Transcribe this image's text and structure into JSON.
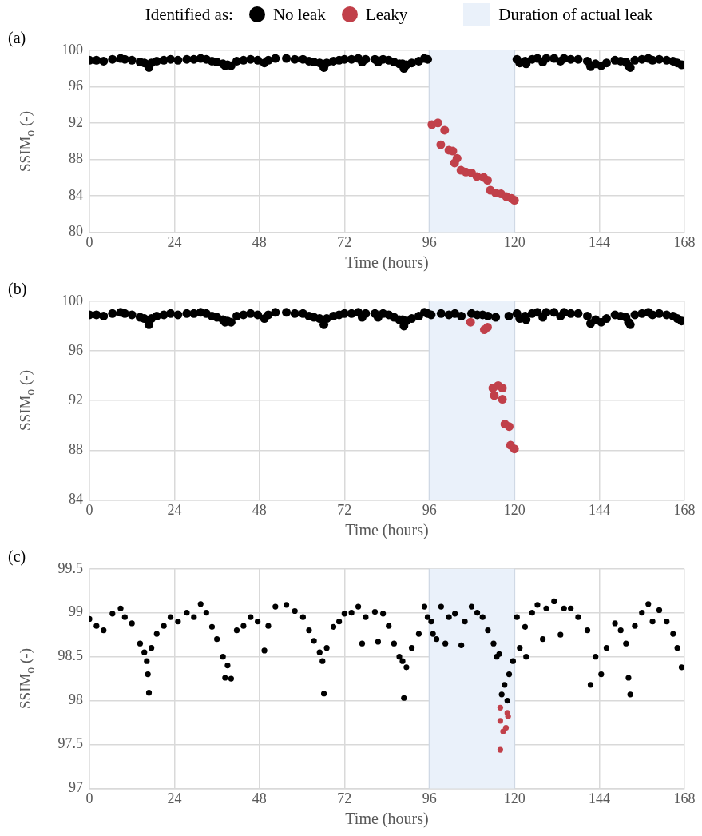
{
  "chart_data": [
    {
      "type": "scatter",
      "title": "(a)",
      "xlabel": "Time (hours)",
      "ylabel": "SSIM$_{o}$ (-)",
      "legend_title": "Identified as:",
      "legend": "top",
      "grid": true,
      "marker": "circle",
      "xlim": [
        0,
        168
      ],
      "xticks": [
        0,
        24,
        48,
        72,
        96,
        120,
        144,
        168
      ],
      "ylim": [
        80,
        100
      ],
      "yticks": [
        80,
        84,
        88,
        92,
        96,
        100
      ],
      "bands": [
        {
          "axis": "x",
          "from": 96,
          "to": 120,
          "label": "Duration of actual leak",
          "color": "#eaf1fa"
        }
      ],
      "series": [
        {
          "name": "No leak",
          "color": "#000000",
          "x": [
            0,
            2,
            4,
            6.5,
            8.8,
            10,
            12,
            14.3,
            15.5,
            16.8,
            17.5,
            19,
            21,
            22.9,
            25,
            27.5,
            29.5,
            31.4,
            33,
            34.6,
            36,
            37.7,
            38.3,
            39,
            40,
            41.6,
            43.5,
            45.5,
            47.5,
            49.4,
            50.5,
            52.5,
            55.6,
            58,
            60.3,
            62,
            63.4,
            65,
            66.2,
            67,
            68.9,
            70.5,
            72,
            74,
            75.9,
            77,
            78,
            80.6,
            81.5,
            82.9,
            84.5,
            86,
            87.5,
            88.4,
            88.8,
            89.5,
            91,
            93,
            94.6,
            95.5,
            120.7,
            121.5,
            123,
            123.3,
            125,
            126.5,
            128,
            129,
            131.2,
            133,
            134,
            135.9,
            138,
            140.6,
            141.5,
            142.9,
            144.5,
            146,
            148.4,
            150,
            151.5,
            152.2,
            152.7,
            154,
            156,
            157.8,
            159,
            160.9,
            163,
            164.8,
            166,
            167.2
          ],
          "values": [
            98.9,
            98.9,
            98.8,
            99.0,
            99.1,
            99.0,
            98.9,
            98.7,
            98.6,
            98.1,
            98.6,
            98.8,
            98.9,
            99.0,
            98.9,
            99.0,
            99.0,
            99.1,
            99.0,
            98.8,
            98.7,
            98.5,
            98.3,
            98.4,
            98.3,
            98.8,
            98.9,
            99.0,
            98.9,
            98.6,
            98.9,
            99.1,
            99.1,
            99.0,
            99.0,
            98.8,
            98.7,
            98.6,
            98.1,
            98.6,
            98.8,
            98.9,
            99.0,
            99.0,
            99.1,
            98.7,
            99.0,
            99.0,
            98.7,
            99.0,
            98.9,
            98.7,
            98.5,
            98.5,
            98.0,
            98.4,
            98.6,
            98.8,
            99.1,
            99.0,
            99.0,
            98.6,
            98.8,
            98.5,
            99.0,
            99.1,
            98.7,
            99.1,
            99.1,
            98.8,
            99.1,
            99.0,
            99.0,
            98.8,
            98.2,
            98.5,
            98.3,
            98.6,
            98.9,
            98.8,
            98.7,
            98.3,
            98.1,
            98.9,
            99.0,
            99.1,
            98.9,
            99.0,
            98.9,
            98.8,
            98.6,
            98.4
          ]
        },
        {
          "name": "Leaky",
          "color": "#c1404a",
          "x": [
            96.7,
            98.4,
            100.3,
            99.2,
            101.5,
            102.6,
            103.8,
            103.1,
            104.9,
            106.3,
            107.9,
            109.4,
            111.3,
            112.4,
            113.2,
            114.7,
            116.2,
            117.7,
            119.2,
            120
          ],
          "values": [
            91.8,
            92.0,
            91.2,
            89.6,
            89.0,
            88.9,
            88.1,
            87.6,
            86.8,
            86.6,
            86.5,
            86.1,
            86.0,
            85.7,
            84.6,
            84.3,
            84.2,
            83.9,
            83.7,
            83.5
          ]
        }
      ]
    },
    {
      "type": "scatter",
      "title": "(b)",
      "xlabel": "Time (hours)",
      "ylabel": "SSIM$_{o}$ (-)",
      "grid": true,
      "marker": "circle",
      "xlim": [
        0,
        168
      ],
      "xticks": [
        0,
        24,
        48,
        72,
        96,
        120,
        144,
        168
      ],
      "ylim": [
        84,
        100
      ],
      "yticks": [
        84,
        88,
        92,
        96,
        100
      ],
      "bands": [
        {
          "axis": "x",
          "from": 96,
          "to": 120,
          "color": "#eaf1fa"
        }
      ],
      "series": [
        {
          "color": "#000000",
          "x": [
            0,
            2,
            4,
            6.5,
            8.8,
            10,
            12,
            14.3,
            15.5,
            16.8,
            17.5,
            19,
            21,
            22.9,
            25,
            27.5,
            29.5,
            31.4,
            33,
            34.6,
            36,
            37.7,
            38.3,
            39,
            40,
            41.6,
            43.5,
            45.5,
            47.5,
            49.4,
            50.5,
            52.5,
            55.6,
            58,
            60.3,
            62,
            63.4,
            65,
            66.2,
            67,
            68.9,
            70.5,
            72,
            74,
            75.9,
            77,
            78,
            80.6,
            81.5,
            82.9,
            84.5,
            86,
            87.5,
            88.4,
            88.8,
            89.5,
            91,
            93,
            94.6,
            95.5,
            96.5,
            99.3,
            101.5,
            103.2,
            105,
            107.9,
            109.5,
            111,
            112.5,
            114.7,
            118.4,
            120.7,
            121.5,
            123,
            123.3,
            125,
            126.5,
            128,
            129,
            131.2,
            133,
            134,
            135.9,
            138,
            140.6,
            141.5,
            142.9,
            144.5,
            146,
            148.4,
            150,
            151.5,
            152.2,
            152.7,
            154,
            156,
            157.8,
            159,
            160.9,
            163,
            164.8,
            166,
            167.2
          ],
          "values": [
            98.9,
            98.9,
            98.8,
            99.0,
            99.1,
            99.0,
            98.9,
            98.7,
            98.6,
            98.1,
            98.6,
            98.8,
            98.9,
            99.0,
            98.9,
            99.0,
            99.0,
            99.1,
            99.0,
            98.8,
            98.7,
            98.5,
            98.3,
            98.4,
            98.3,
            98.8,
            98.9,
            99.0,
            98.9,
            98.6,
            98.9,
            99.1,
            99.1,
            99.0,
            99.0,
            98.8,
            98.7,
            98.6,
            98.1,
            98.6,
            98.8,
            98.9,
            99.0,
            99.0,
            99.1,
            98.7,
            99.0,
            99.0,
            98.7,
            99.0,
            98.9,
            98.7,
            98.5,
            98.5,
            98.0,
            98.4,
            98.6,
            98.8,
            99.1,
            99.0,
            98.9,
            99.0,
            98.9,
            99.0,
            98.8,
            99.0,
            98.9,
            98.9,
            98.8,
            98.7,
            98.8,
            99.0,
            98.6,
            98.8,
            98.5,
            99.0,
            99.1,
            98.7,
            99.1,
            99.1,
            98.8,
            99.1,
            99.0,
            99.0,
            98.8,
            98.2,
            98.5,
            98.3,
            98.6,
            98.9,
            98.8,
            98.7,
            98.3,
            98.1,
            98.9,
            99.0,
            99.1,
            98.9,
            99.0,
            98.9,
            98.8,
            98.6,
            98.4
          ]
        },
        {
          "color": "#c1404a",
          "x": [
            107.6,
            111.5,
            112.4,
            113.9,
            115.4,
            116.6,
            114.3,
            116.6,
            117.3,
            118.5,
            118.9,
            120
          ],
          "values": [
            98.3,
            97.7,
            97.9,
            93.0,
            93.2,
            93.0,
            92.4,
            92.1,
            90.1,
            89.9,
            88.4,
            88.1
          ]
        }
      ]
    },
    {
      "type": "scatter",
      "title": "(c)",
      "xlabel": "Time (hours)",
      "ylabel": "SSIM$_{o}$ (-)",
      "grid": true,
      "marker": "circle",
      "xlim": [
        0,
        168
      ],
      "xticks": [
        0,
        24,
        48,
        72,
        96,
        120,
        144,
        168
      ],
      "ylim": [
        97,
        99.5
      ],
      "yticks": [
        97,
        97.5,
        98,
        98.5,
        99,
        99.5
      ],
      "bands": [
        {
          "axis": "x",
          "from": 96,
          "to": 120,
          "color": "#eaf1fa"
        }
      ],
      "series": [
        {
          "color": "#000000",
          "x": [
            0,
            2,
            4,
            6.5,
            8.8,
            10,
            12,
            14.3,
            15.5,
            16.2,
            16.5,
            16.8,
            17.5,
            19,
            21,
            22.9,
            25,
            27.5,
            29.5,
            31.4,
            33,
            34.6,
            36,
            37.7,
            38.3,
            39,
            40,
            41.6,
            43.5,
            45.5,
            47.5,
            49.4,
            50.5,
            52.5,
            55.6,
            58,
            60.3,
            62,
            63.4,
            65,
            65.8,
            66.2,
            67,
            68.9,
            70.5,
            72,
            74,
            75.9,
            77,
            78,
            80.6,
            81.5,
            82.9,
            84.5,
            86,
            87.5,
            88.4,
            88.8,
            89.5,
            91,
            93,
            94.6,
            95.5,
            96.5,
            97,
            98,
            99.3,
            100.5,
            101.5,
            103.2,
            105,
            106,
            107.9,
            109.5,
            111,
            112.5,
            114.1,
            115,
            115.7,
            116.4,
            117.2,
            118,
            118.5,
            119.6,
            120.7,
            121.5,
            123,
            123.3,
            125,
            126.5,
            128,
            129,
            131.2,
            133,
            134,
            135.9,
            138,
            140.6,
            141.5,
            142.9,
            144.5,
            146,
            148.4,
            150,
            151.5,
            152.2,
            152.7,
            154,
            156,
            157.8,
            159,
            160.9,
            163,
            164.8,
            166,
            167.2
          ],
          "values": [
            98.93,
            98.85,
            98.8,
            98.99,
            99.05,
            98.95,
            98.88,
            98.65,
            98.55,
            98.45,
            98.3,
            98.09,
            98.6,
            98.76,
            98.85,
            98.95,
            98.9,
            99.0,
            98.95,
            99.1,
            99.0,
            98.84,
            98.7,
            98.5,
            98.26,
            98.4,
            98.25,
            98.8,
            98.85,
            98.95,
            98.9,
            98.57,
            98.85,
            99.07,
            99.09,
            99.02,
            98.95,
            98.8,
            98.68,
            98.55,
            98.45,
            98.08,
            98.6,
            98.84,
            98.9,
            98.99,
            99.0,
            99.07,
            98.65,
            98.95,
            99.01,
            98.67,
            98.99,
            98.85,
            98.65,
            98.5,
            98.45,
            98.03,
            98.38,
            98.6,
            98.76,
            99.07,
            98.95,
            98.9,
            98.76,
            98.7,
            99.07,
            98.65,
            98.95,
            98.99,
            98.63,
            98.9,
            99.07,
            99.0,
            98.95,
            98.8,
            98.65,
            98.5,
            98.53,
            98.07,
            98.18,
            98.0,
            98.3,
            98.45,
            98.95,
            98.6,
            98.84,
            98.5,
            99.0,
            99.09,
            98.7,
            99.05,
            99.13,
            98.75,
            99.05,
            99.05,
            98.95,
            98.8,
            98.18,
            98.5,
            98.3,
            98.6,
            98.88,
            98.8,
            98.65,
            98.26,
            98.07,
            98.85,
            99.0,
            99.1,
            98.9,
            99.03,
            98.9,
            98.76,
            98.6,
            98.38
          ]
        },
        {
          "color": "#c1404a",
          "x": [
            116,
            118,
            118.2,
            116,
            117.6,
            116.8,
            116
          ],
          "values": [
            97.92,
            97.86,
            97.82,
            97.77,
            97.69,
            97.65,
            97.44
          ]
        }
      ]
    }
  ]
}
